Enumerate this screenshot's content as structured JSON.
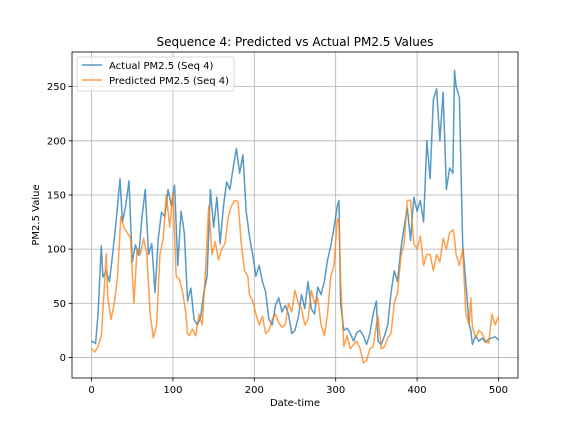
{
  "chart_data": {
    "type": "line",
    "title": "Sequence 4: Predicted vs Actual PM2.5 Values",
    "xlabel": "Date-time",
    "ylabel": "PM2.5 Value",
    "xlim": [
      -24,
      524
    ],
    "ylim": [
      -19,
      282
    ],
    "xticks": [
      0,
      100,
      200,
      300,
      400,
      500
    ],
    "yticks": [
      0,
      50,
      100,
      150,
      200,
      250
    ],
    "grid": true,
    "legend_position": "upper-left",
    "series": [
      {
        "name": "Actual PM2.5 (Seq 4)",
        "color": "#1f77b4",
        "points": [
          [
            0,
            15
          ],
          [
            5,
            13
          ],
          [
            8,
            40
          ],
          [
            12,
            103
          ],
          [
            14,
            74
          ],
          [
            18,
            80
          ],
          [
            22,
            70
          ],
          [
            26,
            96
          ],
          [
            30,
            124
          ],
          [
            35,
            165
          ],
          [
            38,
            125
          ],
          [
            42,
            140
          ],
          [
            46,
            163
          ],
          [
            50,
            88
          ],
          [
            54,
            104
          ],
          [
            58,
            94
          ],
          [
            62,
            130
          ],
          [
            66,
            155
          ],
          [
            70,
            95
          ],
          [
            74,
            105
          ],
          [
            78,
            60
          ],
          [
            82,
            110
          ],
          [
            86,
            134
          ],
          [
            90,
            130
          ],
          [
            94,
            155
          ],
          [
            98,
            140
          ],
          [
            102,
            159
          ],
          [
            106,
            85
          ],
          [
            110,
            135
          ],
          [
            114,
            115
          ],
          [
            118,
            52
          ],
          [
            122,
            64
          ],
          [
            126,
            35
          ],
          [
            130,
            30
          ],
          [
            134,
            37
          ],
          [
            138,
            60
          ],
          [
            142,
            75
          ],
          [
            146,
            155
          ],
          [
            150,
            120
          ],
          [
            154,
            148
          ],
          [
            158,
            105
          ],
          [
            162,
            139
          ],
          [
            166,
            162
          ],
          [
            170,
            155
          ],
          [
            174,
            175
          ],
          [
            178,
            193
          ],
          [
            182,
            170
          ],
          [
            186,
            187
          ],
          [
            190,
            135
          ],
          [
            194,
            112
          ],
          [
            198,
            95
          ],
          [
            202,
            75
          ],
          [
            206,
            85
          ],
          [
            210,
            70
          ],
          [
            214,
            60
          ],
          [
            218,
            35
          ],
          [
            222,
            30
          ],
          [
            226,
            48
          ],
          [
            230,
            55
          ],
          [
            234,
            42
          ],
          [
            238,
            48
          ],
          [
            242,
            40
          ],
          [
            246,
            22
          ],
          [
            250,
            25
          ],
          [
            254,
            37
          ],
          [
            258,
            58
          ],
          [
            262,
            45
          ],
          [
            266,
            70
          ],
          [
            270,
            45
          ],
          [
            274,
            40
          ],
          [
            278,
            65
          ],
          [
            282,
            58
          ],
          [
            286,
            70
          ],
          [
            290,
            90
          ],
          [
            294,
            103
          ],
          [
            298,
            120
          ],
          [
            302,
            140
          ],
          [
            304,
            145
          ],
          [
            306,
            50
          ],
          [
            310,
            25
          ],
          [
            314,
            27
          ],
          [
            318,
            22
          ],
          [
            322,
            15
          ],
          [
            326,
            23
          ],
          [
            330,
            25
          ],
          [
            334,
            20
          ],
          [
            338,
            12
          ],
          [
            342,
            22
          ],
          [
            346,
            40
          ],
          [
            350,
            52
          ],
          [
            352,
            15
          ],
          [
            356,
            12
          ],
          [
            360,
            20
          ],
          [
            364,
            30
          ],
          [
            368,
            60
          ],
          [
            372,
            80
          ],
          [
            376,
            70
          ],
          [
            380,
            100
          ],
          [
            384,
            120
          ],
          [
            388,
            138
          ],
          [
            392,
            108
          ],
          [
            396,
            148
          ],
          [
            400,
            135
          ],
          [
            404,
            145
          ],
          [
            408,
            125
          ],
          [
            412,
            200
          ],
          [
            416,
            165
          ],
          [
            420,
            238
          ],
          [
            424,
            248
          ],
          [
            428,
            200
          ],
          [
            432,
            245
          ],
          [
            436,
            155
          ],
          [
            440,
            175
          ],
          [
            444,
            170
          ],
          [
            446,
            265
          ],
          [
            448,
            250
          ],
          [
            452,
            240
          ],
          [
            456,
            105
          ],
          [
            460,
            68
          ],
          [
            464,
            30
          ],
          [
            466,
            25
          ],
          [
            468,
            12
          ],
          [
            472,
            20
          ],
          [
            476,
            15
          ],
          [
            480,
            18
          ],
          [
            484,
            14
          ],
          [
            488,
            17
          ],
          [
            492,
            18
          ],
          [
            496,
            19
          ],
          [
            500,
            16
          ]
        ]
      },
      {
        "name": "Predicted PM2.5 (Seq 4)",
        "color": "#ff7f0e",
        "points": [
          [
            0,
            8
          ],
          [
            4,
            5
          ],
          [
            8,
            10
          ],
          [
            12,
            20
          ],
          [
            16,
            68
          ],
          [
            18,
            96
          ],
          [
            20,
            55
          ],
          [
            24,
            35
          ],
          [
            28,
            50
          ],
          [
            32,
            75
          ],
          [
            36,
            130
          ],
          [
            40,
            120
          ],
          [
            44,
            115
          ],
          [
            48,
            110
          ],
          [
            52,
            50
          ],
          [
            56,
            100
          ],
          [
            60,
            95
          ],
          [
            64,
            110
          ],
          [
            68,
            95
          ],
          [
            72,
            40
          ],
          [
            76,
            18
          ],
          [
            80,
            30
          ],
          [
            84,
            95
          ],
          [
            88,
            110
          ],
          [
            92,
            150
          ],
          [
            96,
            120
          ],
          [
            100,
            152
          ],
          [
            104,
            75
          ],
          [
            108,
            72
          ],
          [
            112,
            60
          ],
          [
            116,
            40
          ],
          [
            118,
            22
          ],
          [
            120,
            20
          ],
          [
            124,
            26
          ],
          [
            128,
            20
          ],
          [
            132,
            40
          ],
          [
            136,
            30
          ],
          [
            140,
            80
          ],
          [
            144,
            140
          ],
          [
            148,
            95
          ],
          [
            152,
            107
          ],
          [
            156,
            90
          ],
          [
            160,
            100
          ],
          [
            164,
            105
          ],
          [
            168,
            130
          ],
          [
            172,
            140
          ],
          [
            176,
            145
          ],
          [
            180,
            144
          ],
          [
            184,
            105
          ],
          [
            188,
            80
          ],
          [
            192,
            75
          ],
          [
            194,
            58
          ],
          [
            198,
            52
          ],
          [
            202,
            40
          ],
          [
            206,
            30
          ],
          [
            210,
            38
          ],
          [
            214,
            22
          ],
          [
            218,
            25
          ],
          [
            222,
            35
          ],
          [
            226,
            40
          ],
          [
            230,
            32
          ],
          [
            234,
            28
          ],
          [
            238,
            30
          ],
          [
            242,
            50
          ],
          [
            246,
            42
          ],
          [
            250,
            62
          ],
          [
            254,
            50
          ],
          [
            258,
            45
          ],
          [
            262,
            30
          ],
          [
            266,
            35
          ],
          [
            270,
            62
          ],
          [
            274,
            50
          ],
          [
            278,
            55
          ],
          [
            282,
            30
          ],
          [
            286,
            20
          ],
          [
            290,
            40
          ],
          [
            294,
            75
          ],
          [
            298,
            85
          ],
          [
            302,
            128
          ],
          [
            304,
            126
          ],
          [
            306,
            70
          ],
          [
            310,
            10
          ],
          [
            314,
            20
          ],
          [
            318,
            8
          ],
          [
            322,
            12
          ],
          [
            326,
            15
          ],
          [
            330,
            8
          ],
          [
            334,
            -5
          ],
          [
            338,
            -3
          ],
          [
            342,
            8
          ],
          [
            346,
            10
          ],
          [
            350,
            30
          ],
          [
            352,
            38
          ],
          [
            356,
            8
          ],
          [
            360,
            10
          ],
          [
            364,
            18
          ],
          [
            368,
            22
          ],
          [
            372,
            50
          ],
          [
            376,
            60
          ],
          [
            380,
            92
          ],
          [
            384,
            105
          ],
          [
            388,
            145
          ],
          [
            392,
            145
          ],
          [
            396,
            105
          ],
          [
            400,
            100
          ],
          [
            404,
            112
          ],
          [
            408,
            85
          ],
          [
            412,
            95
          ],
          [
            416,
            95
          ],
          [
            420,
            80
          ],
          [
            424,
            95
          ],
          [
            428,
            88
          ],
          [
            432,
            110
          ],
          [
            436,
            100
          ],
          [
            440,
            115
          ],
          [
            444,
            118
          ],
          [
            446,
            110
          ],
          [
            448,
            95
          ],
          [
            452,
            85
          ],
          [
            456,
            100
          ],
          [
            460,
            40
          ],
          [
            464,
            30
          ],
          [
            466,
            55
          ],
          [
            468,
            28
          ],
          [
            472,
            18
          ],
          [
            476,
            25
          ],
          [
            480,
            22
          ],
          [
            484,
            15
          ],
          [
            488,
            13
          ],
          [
            492,
            40
          ],
          [
            496,
            30
          ],
          [
            500,
            38
          ]
        ]
      }
    ]
  }
}
